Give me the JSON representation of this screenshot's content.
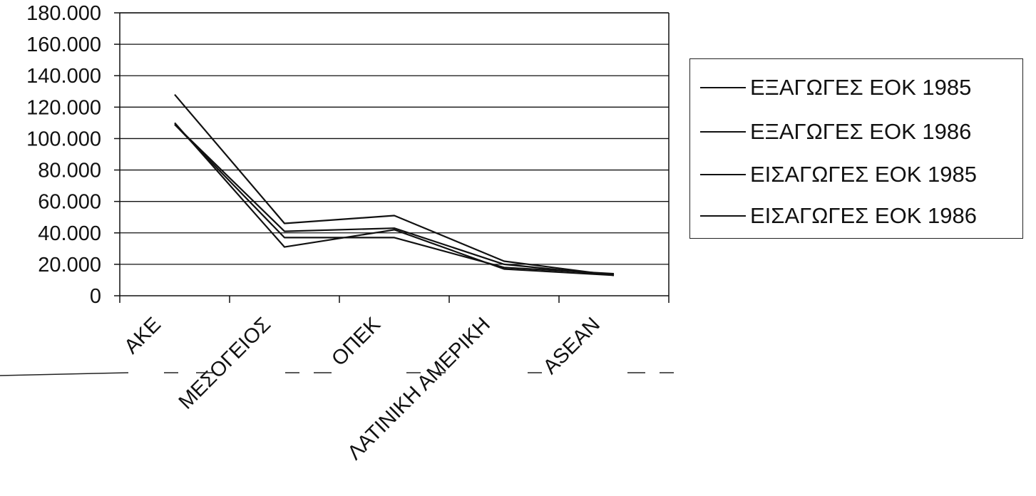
{
  "chart_data": {
    "type": "line",
    "categories": [
      "ΑΚΕ",
      "ΜΕΣΟΓΕΙΟΣ",
      "ΟΠΕΚ",
      "ΛΑΤΙΝΙΚΗ ΑΜΕΡΙΚΗ",
      "ASEAN"
    ],
    "series": [
      {
        "name": "ΕΞΑΓΩΓΕΣ ΕΟΚ 1985",
        "values": [
          110000,
          31000,
          42000,
          17000,
          13000
        ]
      },
      {
        "name": "ΕΞΑΓΩΓΕΣ ΕΟΚ 1986",
        "values": [
          128000,
          46000,
          51000,
          22000,
          13000
        ]
      },
      {
        "name": "ΕΙΣΑΓΩΓΕΣ ΕΟΚ 1985",
        "values": [
          109000,
          41000,
          43000,
          20000,
          13000
        ]
      },
      {
        "name": "ΕΙΣΑΓΩΓΕΣ ΕΟΚ 1986",
        "values": [
          109000,
          37000,
          37000,
          18000,
          14000
        ]
      }
    ],
    "yticks": [
      "0",
      "20.000",
      "40.000",
      "60.000",
      "80.000",
      "100.000",
      "120.000",
      "140.000",
      "160.000",
      "180.000"
    ],
    "ylim": [
      0,
      180000
    ],
    "grid": true,
    "legend_position": "right",
    "line_color": "#111111"
  }
}
